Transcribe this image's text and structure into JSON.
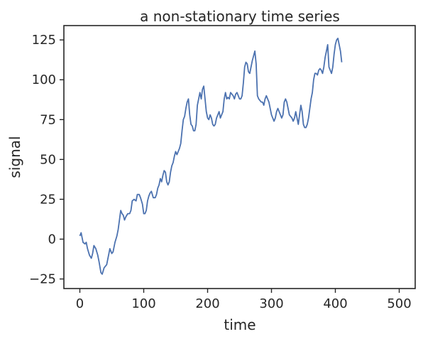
{
  "chart_data": {
    "type": "line",
    "title": "a non-stationary time series",
    "xlabel": "time",
    "ylabel": "signal",
    "xlim": [
      -25,
      525
    ],
    "ylim": [
      -31,
      134
    ],
    "xticks": [
      0,
      100,
      200,
      300,
      400,
      500
    ],
    "yticks": [
      -25,
      0,
      25,
      50,
      75,
      100,
      125
    ],
    "grid": false,
    "line_color": "#4c72b0",
    "series": [
      {
        "values": [
          [
            0,
            2
          ],
          [
            2,
            4
          ],
          [
            5,
            -2
          ],
          [
            8,
            -3
          ],
          [
            10,
            -2
          ],
          [
            12,
            -6
          ],
          [
            15,
            -10
          ],
          [
            18,
            -12
          ],
          [
            20,
            -9
          ],
          [
            22,
            -4
          ],
          [
            25,
            -6
          ],
          [
            28,
            -10
          ],
          [
            30,
            -14
          ],
          [
            33,
            -21
          ],
          [
            35,
            -22
          ],
          [
            38,
            -18
          ],
          [
            40,
            -17
          ],
          [
            42,
            -16
          ],
          [
            45,
            -10
          ],
          [
            47,
            -6
          ],
          [
            50,
            -9
          ],
          [
            52,
            -8
          ],
          [
            55,
            -2
          ],
          [
            58,
            2
          ],
          [
            60,
            6
          ],
          [
            62,
            12
          ],
          [
            64,
            18
          ],
          [
            66,
            16
          ],
          [
            68,
            15
          ],
          [
            70,
            12
          ],
          [
            72,
            14
          ],
          [
            75,
            16
          ],
          [
            78,
            16
          ],
          [
            80,
            18
          ],
          [
            82,
            24
          ],
          [
            85,
            25
          ],
          [
            88,
            24
          ],
          [
            90,
            28
          ],
          [
            93,
            28
          ],
          [
            95,
            26
          ],
          [
            98,
            22
          ],
          [
            100,
            16
          ],
          [
            102,
            16
          ],
          [
            104,
            18
          ],
          [
            106,
            24
          ],
          [
            108,
            27
          ],
          [
            110,
            29
          ],
          [
            112,
            30
          ],
          [
            115,
            26
          ],
          [
            118,
            26
          ],
          [
            120,
            28
          ],
          [
            122,
            32
          ],
          [
            124,
            34
          ],
          [
            126,
            38
          ],
          [
            128,
            36
          ],
          [
            130,
            40
          ],
          [
            132,
            43
          ],
          [
            134,
            42
          ],
          [
            136,
            36
          ],
          [
            138,
            34
          ],
          [
            140,
            36
          ],
          [
            142,
            42
          ],
          [
            144,
            46
          ],
          [
            146,
            48
          ],
          [
            148,
            52
          ],
          [
            150,
            55
          ],
          [
            152,
            53
          ],
          [
            154,
            55
          ],
          [
            156,
            57
          ],
          [
            158,
            60
          ],
          [
            160,
            68
          ],
          [
            162,
            75
          ],
          [
            164,
            77
          ],
          [
            166,
            82
          ],
          [
            168,
            86
          ],
          [
            170,
            88
          ],
          [
            172,
            78
          ],
          [
            174,
            72
          ],
          [
            176,
            71
          ],
          [
            178,
            68
          ],
          [
            180,
            68
          ],
          [
            182,
            72
          ],
          [
            184,
            84
          ],
          [
            186,
            88
          ],
          [
            188,
            92
          ],
          [
            190,
            88
          ],
          [
            192,
            94
          ],
          [
            194,
            96
          ],
          [
            196,
            88
          ],
          [
            198,
            80
          ],
          [
            200,
            76
          ],
          [
            202,
            75
          ],
          [
            204,
            78
          ],
          [
            206,
            76
          ],
          [
            208,
            72
          ],
          [
            210,
            71
          ],
          [
            212,
            72
          ],
          [
            214,
            76
          ],
          [
            216,
            78
          ],
          [
            218,
            80
          ],
          [
            220,
            76
          ],
          [
            222,
            78
          ],
          [
            224,
            80
          ],
          [
            226,
            88
          ],
          [
            228,
            92
          ],
          [
            230,
            88
          ],
          [
            232,
            89
          ],
          [
            234,
            88
          ],
          [
            236,
            92
          ],
          [
            238,
            91
          ],
          [
            240,
            90
          ],
          [
            242,
            88
          ],
          [
            244,
            91
          ],
          [
            246,
            92
          ],
          [
            248,
            90
          ],
          [
            250,
            88
          ],
          [
            252,
            88
          ],
          [
            254,
            90
          ],
          [
            256,
            98
          ],
          [
            258,
            108
          ],
          [
            260,
            111
          ],
          [
            262,
            110
          ],
          [
            264,
            105
          ],
          [
            266,
            104
          ],
          [
            268,
            108
          ],
          [
            270,
            112
          ],
          [
            272,
            115
          ],
          [
            274,
            118
          ],
          [
            276,
            110
          ],
          [
            278,
            90
          ],
          [
            280,
            88
          ],
          [
            282,
            87
          ],
          [
            284,
            86
          ],
          [
            286,
            86
          ],
          [
            288,
            84
          ],
          [
            290,
            88
          ],
          [
            292,
            90
          ],
          [
            294,
            88
          ],
          [
            296,
            86
          ],
          [
            298,
            82
          ],
          [
            300,
            78
          ],
          [
            302,
            76
          ],
          [
            304,
            74
          ],
          [
            306,
            76
          ],
          [
            308,
            80
          ],
          [
            310,
            82
          ],
          [
            312,
            80
          ],
          [
            314,
            78
          ],
          [
            316,
            76
          ],
          [
            318,
            78
          ],
          [
            320,
            86
          ],
          [
            322,
            88
          ],
          [
            324,
            86
          ],
          [
            326,
            82
          ],
          [
            328,
            78
          ],
          [
            330,
            77
          ],
          [
            332,
            76
          ],
          [
            334,
            74
          ],
          [
            336,
            76
          ],
          [
            338,
            80
          ],
          [
            340,
            76
          ],
          [
            342,
            72
          ],
          [
            344,
            78
          ],
          [
            346,
            84
          ],
          [
            348,
            80
          ],
          [
            350,
            72
          ],
          [
            352,
            70
          ],
          [
            354,
            70
          ],
          [
            356,
            72
          ],
          [
            358,
            76
          ],
          [
            360,
            82
          ],
          [
            362,
            88
          ],
          [
            364,
            92
          ],
          [
            366,
            100
          ],
          [
            368,
            104
          ],
          [
            370,
            104
          ],
          [
            372,
            103
          ],
          [
            374,
            106
          ],
          [
            376,
            107
          ],
          [
            378,
            106
          ],
          [
            380,
            104
          ],
          [
            382,
            108
          ],
          [
            384,
            114
          ],
          [
            386,
            118
          ],
          [
            388,
            122
          ],
          [
            390,
            108
          ],
          [
            392,
            106
          ],
          [
            394,
            104
          ],
          [
            396,
            108
          ],
          [
            398,
            116
          ],
          [
            400,
            122
          ],
          [
            402,
            125
          ],
          [
            404,
            126
          ],
          [
            406,
            122
          ],
          [
            408,
            118
          ],
          [
            410,
            111
          ]
        ]
      }
    ]
  }
}
